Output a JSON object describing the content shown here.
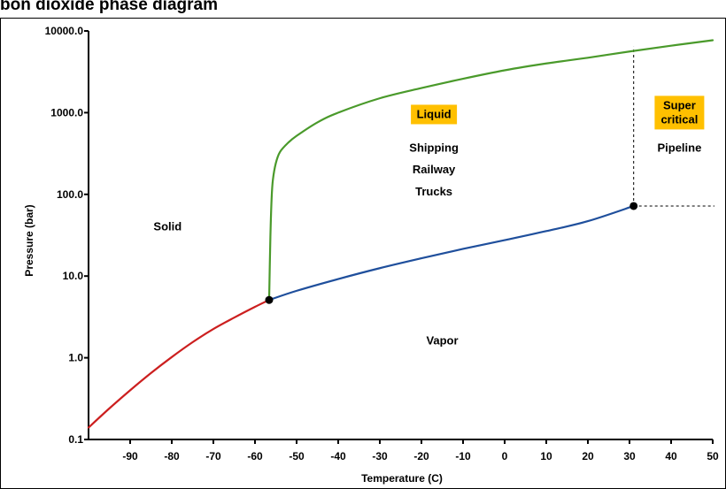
{
  "chart_data": {
    "type": "line",
    "title": "bon dioxide phase diagram",
    "xlabel": "Temperature (C)",
    "ylabel": "Pressure (bar)",
    "xlim": [
      -100,
      50
    ],
    "ylim": [
      0.1,
      10000
    ],
    "y_scale": "log",
    "x_ticks": [
      -90,
      -80,
      -70,
      -60,
      -50,
      -40,
      -30,
      -20,
      -10,
      0,
      10,
      20,
      30,
      40,
      50
    ],
    "y_ticks": [
      0.1,
      1.0,
      10.0,
      100.0,
      1000.0,
      10000.0
    ],
    "y_tick_labels": [
      "0.1",
      "1.0",
      "10.0",
      "100.0",
      "1000.0",
      "10000.0"
    ],
    "grid": false,
    "series": [
      {
        "color": "#cc1f1f",
        "x": [
          -100,
          -95,
          -90,
          -85,
          -80,
          -75,
          -70,
          -65,
          -60,
          -56.6
        ],
        "y": [
          0.14,
          0.24,
          0.4,
          0.65,
          1.02,
          1.55,
          2.25,
          3.1,
          4.2,
          5.1
        ]
      },
      {
        "color": "#1f4f9c",
        "x": [
          -56.6,
          -50,
          -40,
          -30,
          -20,
          -10,
          0,
          10,
          20,
          31
        ],
        "y": [
          5.1,
          6.6,
          9.2,
          12.5,
          16.5,
          21.5,
          27.5,
          35.5,
          47,
          72
        ]
      },
      {
        "color": "#4a9a2b",
        "x": [
          -56.6,
          -56.3,
          -56,
          -55.7,
          -55,
          -54,
          -52,
          -50,
          -45,
          -40,
          -30,
          -20,
          -10,
          0,
          10,
          20,
          30,
          40,
          50
        ],
        "y": [
          5.1,
          30,
          90,
          150,
          240,
          330,
          430,
          520,
          760,
          1000,
          1500,
          2000,
          2600,
          3300,
          4000,
          4700,
          5600,
          6600,
          7700
        ]
      }
    ],
    "points": [
      {
        "x": -56.6,
        "y": 5.1
      },
      {
        "x": 31,
        "y": 72
      }
    ],
    "critical_point": {
      "x": 31,
      "y": 72
    },
    "annotations": {
      "regions": [
        {
          "text": "Solid",
          "x": -81,
          "y": 40
        },
        {
          "text": "Vapor",
          "x": -15,
          "y": 1.6
        },
        {
          "text": "Shipping",
          "x": -17,
          "y": 370
        },
        {
          "text": "Railway",
          "x": -17,
          "y": 200
        },
        {
          "text": "Trucks",
          "x": -17,
          "y": 107
        },
        {
          "text": "Pipeline",
          "x": 42,
          "y": 370
        }
      ],
      "badges": [
        {
          "lines": [
            "Liquid"
          ],
          "x": -17,
          "y": 950,
          "color": "#ffc000"
        },
        {
          "lines": [
            "Super",
            "critical"
          ],
          "x": 42,
          "y": 1000,
          "color": "#ffc000"
        }
      ]
    }
  }
}
